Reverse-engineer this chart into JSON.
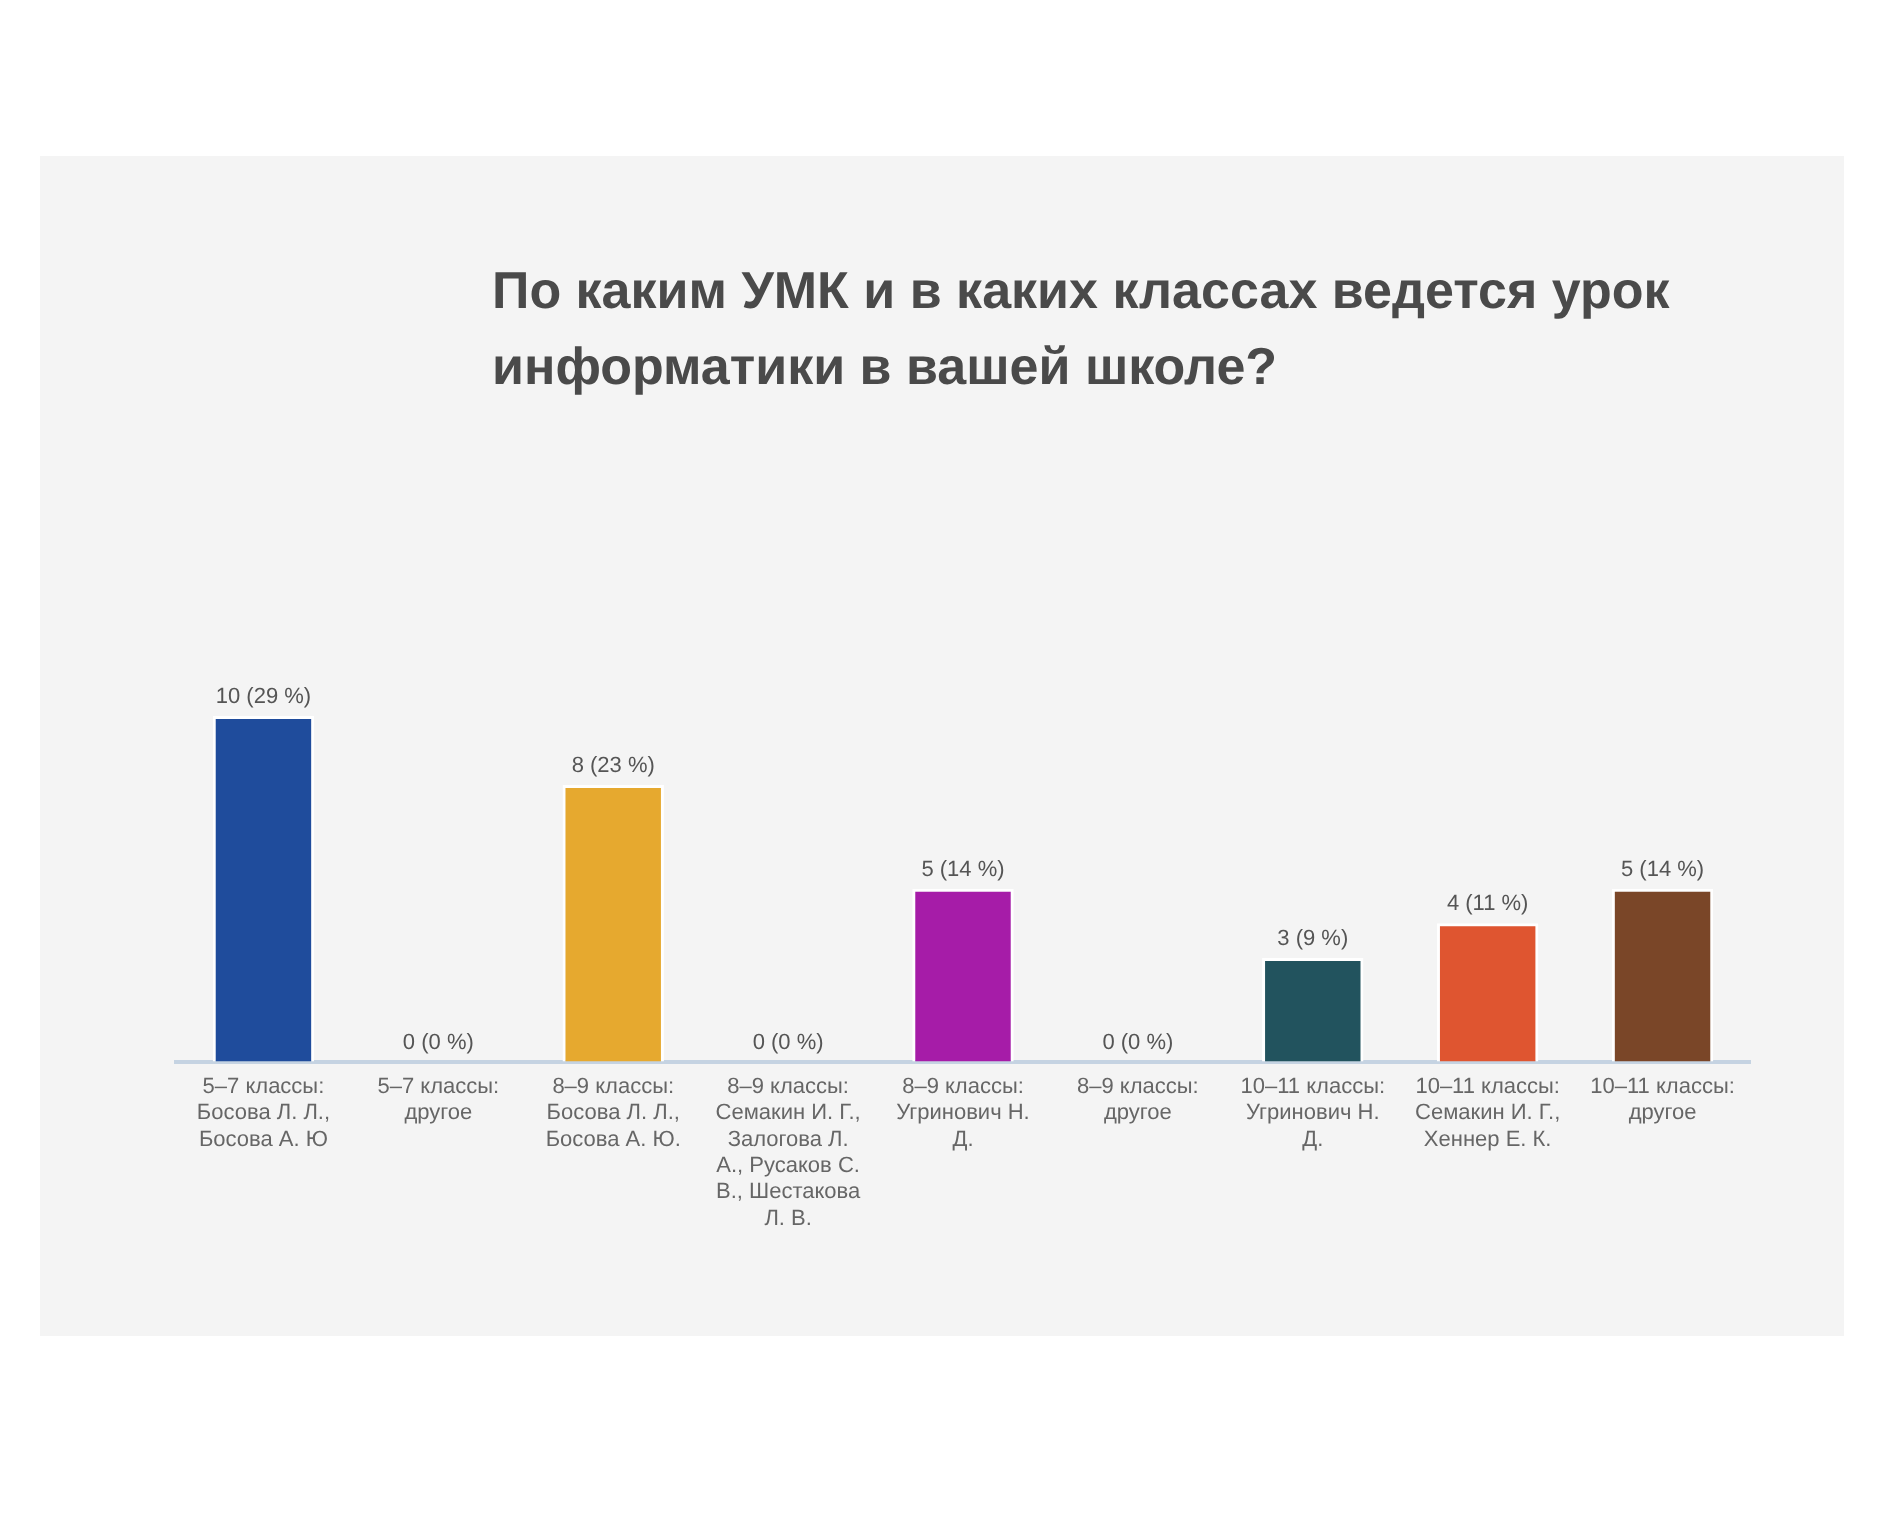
{
  "chart_data": {
    "type": "bar",
    "title": "По каким УМК и в каких классах ведется урок информатики в вашей школе?",
    "categories": [
      "5–7 классы: Босова Л. Л., Босова А. Ю",
      "5–7 классы: другое",
      "8–9 классы: Босова Л. Л., Босова А. Ю.",
      "8–9 классы: Семакин И. Г., Залогова Л. А., Русаков С. В., Шестакова Л. В.",
      "8–9 классы: Угринович Н. Д.",
      "8–9 классы: другое",
      "10–11 классы: Угринович Н. Д.",
      "10–11 классы: Семакин И. Г., Хеннер Е. К.",
      "10–11 классы: другое"
    ],
    "values": [
      10,
      0,
      8,
      0,
      5,
      0,
      3,
      4,
      5
    ],
    "value_labels": [
      "10 (29 %)",
      "0 (0 %)",
      "8 (23 %)",
      "0 (0 %)",
      "5 (14 %)",
      "0 (0 %)",
      "3 (9 %)",
      "4 (11 %)",
      "5 (14 %)"
    ],
    "colors": [
      "#1f4c9c",
      null,
      "#e6a92f",
      null,
      "#a61ca8",
      null,
      "#22535e",
      "#df5530",
      "#7a4628"
    ],
    "grid": false,
    "legend": false
  }
}
